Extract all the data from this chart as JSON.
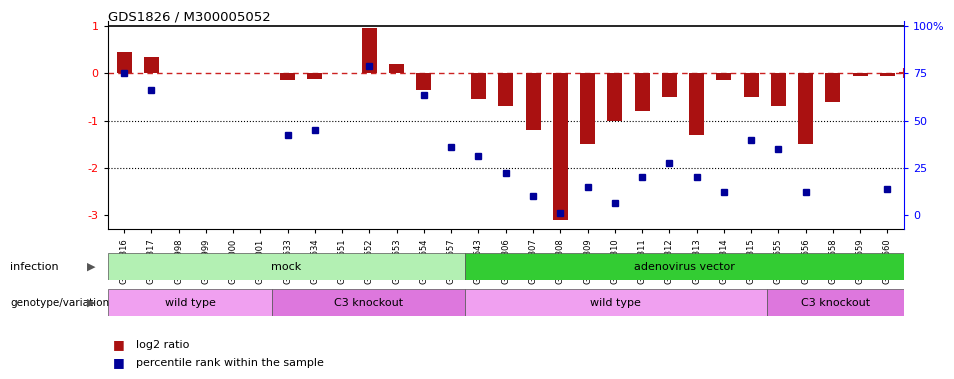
{
  "title": "GDS1826 / M300005052",
  "samples": [
    "GSM87316",
    "GSM87317",
    "GSM93998",
    "GSM93999",
    "GSM94000",
    "GSM94001",
    "GSM93633",
    "GSM93634",
    "GSM93651",
    "GSM93652",
    "GSM93653",
    "GSM93654",
    "GSM93657",
    "GSM86643",
    "GSM87306",
    "GSM87307",
    "GSM87308",
    "GSM87309",
    "GSM87310",
    "GSM87311",
    "GSM87312",
    "GSM87313",
    "GSM87314",
    "GSM87315",
    "GSM93655",
    "GSM93656",
    "GSM93658",
    "GSM93659",
    "GSM93660"
  ],
  "log2_ratio": [
    0.45,
    0.35,
    0.0,
    0.0,
    0.0,
    0.0,
    -0.15,
    -0.12,
    0.0,
    0.95,
    0.2,
    -0.35,
    0.0,
    -0.55,
    -0.7,
    -1.2,
    -3.1,
    -1.5,
    -1.0,
    -0.8,
    -0.5,
    -1.3,
    -0.15,
    -0.5,
    -0.7,
    -1.5,
    -0.6,
    -0.05,
    -0.05
  ],
  "percentile_y": [
    0.0,
    -0.35,
    null,
    null,
    null,
    null,
    -1.3,
    -1.2,
    null,
    0.15,
    null,
    -0.45,
    -1.55,
    -1.75,
    -2.1,
    -2.6,
    -2.95,
    -2.4,
    -2.75,
    -2.2,
    -1.9,
    -2.2,
    -2.5,
    -1.4,
    -1.6,
    -2.5,
    null,
    null,
    -2.45
  ],
  "infection_labels": [
    "mock",
    "adenovirus vector"
  ],
  "infection_ranges": [
    [
      0,
      12
    ],
    [
      13,
      28
    ]
  ],
  "infection_colors": [
    "#b3f0b3",
    "#33cc33"
  ],
  "genotype_labels": [
    "wild type",
    "C3 knockout",
    "wild type",
    "C3 knockout"
  ],
  "genotype_ranges": [
    [
      0,
      5
    ],
    [
      6,
      12
    ],
    [
      13,
      23
    ],
    [
      24,
      28
    ]
  ],
  "genotype_colors_light": [
    "#f0a0f0",
    "#cc66cc"
  ],
  "genotype_colors": [
    "#f0a0f0",
    "#dd77dd",
    "#f0a0f0",
    "#dd77dd"
  ],
  "bar_color": "#aa1111",
  "dot_color": "#000099",
  "ref_line_color": "#cc2222",
  "ylim": [
    -3.3,
    1.1
  ],
  "legend_log2": "log2 ratio",
  "legend_pct": "percentile rank within the sample"
}
